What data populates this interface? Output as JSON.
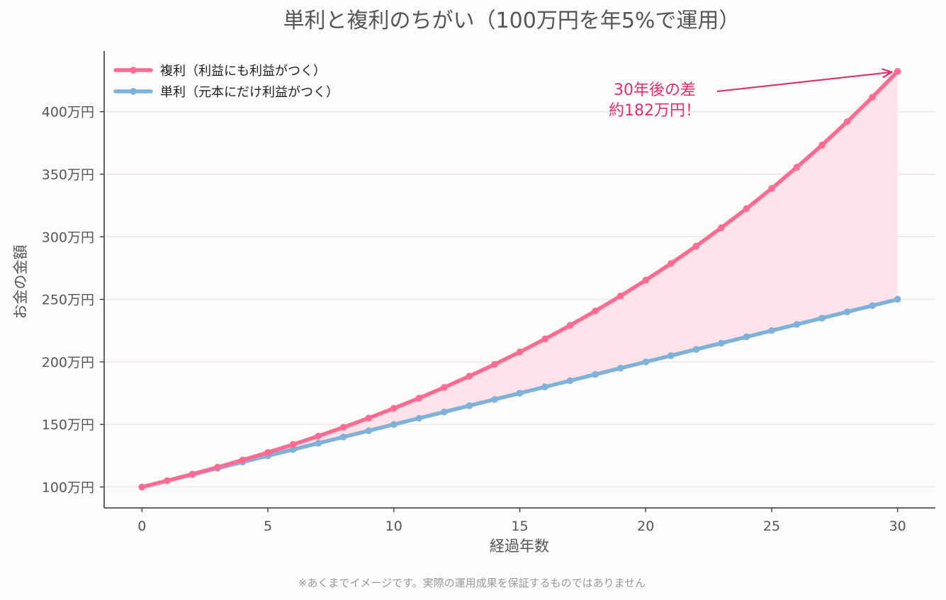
{
  "chart_data": {
    "type": "line",
    "title": "単利と複利のちがい（100万円を年5%で運用）",
    "xlabel": "経過年数",
    "ylabel": "お金の金額",
    "xlim": [
      -1.5,
      31.5
    ],
    "ylim": [
      83.3,
      448.5
    ],
    "x_ticks": [
      0,
      5,
      10,
      15,
      20,
      25,
      30
    ],
    "x_tick_labels": [
      "0",
      "5",
      "10",
      "15",
      "20",
      "25",
      "30"
    ],
    "y_ticks": [
      100,
      150,
      200,
      250,
      300,
      350,
      400
    ],
    "y_tick_labels": [
      "100万円",
      "150万円",
      "200万円",
      "250万円",
      "300万円",
      "350万円",
      "400万円"
    ],
    "grid": "horizontal",
    "legend_position": "top-left",
    "x": [
      0,
      1,
      2,
      3,
      4,
      5,
      6,
      7,
      8,
      9,
      10,
      11,
      12,
      13,
      14,
      15,
      16,
      17,
      18,
      19,
      20,
      21,
      22,
      23,
      24,
      25,
      26,
      27,
      28,
      29,
      30
    ],
    "series": [
      {
        "name": "複利（利益にも利益がつく）",
        "color": "#ff6b93",
        "values": [
          100.0,
          105.0,
          110.3,
          115.8,
          121.6,
          127.6,
          134.0,
          140.7,
          147.7,
          155.1,
          162.9,
          171.0,
          179.6,
          188.6,
          198.0,
          207.9,
          218.3,
          229.2,
          240.7,
          252.7,
          265.3,
          278.6,
          292.5,
          307.2,
          322.5,
          338.6,
          355.6,
          373.3,
          392.0,
          411.6,
          432.2
        ]
      },
      {
        "name": "単利（元本にだけ利益がつく）",
        "color": "#7fb2d9",
        "values": [
          100,
          105,
          110,
          115,
          120,
          125,
          130,
          135,
          140,
          145,
          150,
          155,
          160,
          165,
          170,
          175,
          180,
          185,
          190,
          195,
          200,
          205,
          210,
          215,
          220,
          225,
          230,
          235,
          240,
          245,
          250
        ]
      }
    ],
    "fill_between_color": "#ffe3ea",
    "annotation": {
      "lines": [
        "30年後の差",
        "約182万円！"
      ],
      "color": "#d6336c",
      "target_x": 30,
      "target_y": 432.2
    },
    "footnote": "※あくまでイメージです。実際の運用成果を保証するものではありません"
  }
}
